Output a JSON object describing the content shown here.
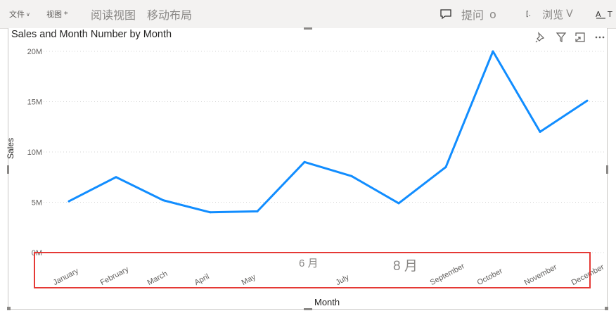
{
  "toolbar": {
    "file_label": "文件",
    "view_label": "视图",
    "view_star": "*",
    "reading_view_label": "阅读视图",
    "mobile_layout_label": "移动布局",
    "ask_label": "提问",
    "ask_count": "o",
    "browse_label": "浏览",
    "browse_chevron": "V",
    "text_icon_label": "T"
  },
  "visual": {
    "title": "Sales and Month Number by Month"
  },
  "chart_data": {
    "type": "line",
    "title": "Sales and Month Number by Month",
    "xlabel": "Month",
    "ylabel": "Sales",
    "categories": [
      "January",
      "February",
      "March",
      "April",
      "May",
      "6 月",
      "July",
      "8 月",
      "September",
      "October",
      "November",
      "December"
    ],
    "values": [
      5.1,
      7.5,
      5.2,
      4.0,
      4.1,
      9.0,
      7.6,
      4.9,
      8.5,
      20.0,
      12.0,
      15.1
    ],
    "yticks": [
      "0M",
      "5M",
      "10M",
      "15M",
      "20M"
    ],
    "ylim": [
      0,
      20
    ],
    "grid": true,
    "color": "#118dff"
  },
  "colors": {
    "line": "#118dff",
    "highlight": "#e53935",
    "grid": "#d6d6d6"
  }
}
